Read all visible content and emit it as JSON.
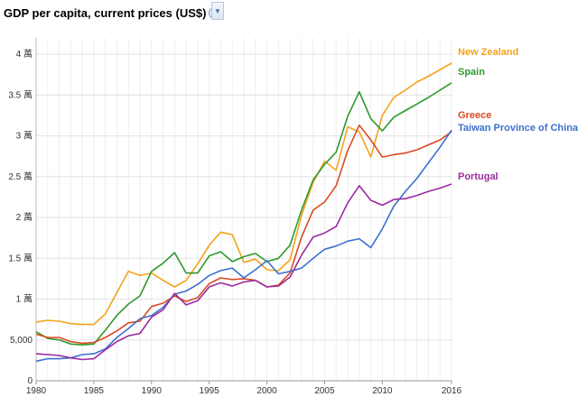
{
  "header": {
    "title": "GDP per capita, current prices (US$)",
    "help_icon": "?",
    "dropdown_icon": "▼"
  },
  "chart_data": {
    "type": "line",
    "title": "GDP per capita, current prices (US$)",
    "xlabel": "",
    "ylabel": "",
    "xlim": [
      1980,
      2016
    ],
    "ylim": [
      0,
      42000
    ],
    "grid": true,
    "legend": "right, labels at line ends",
    "x_ticks": [
      {
        "v": 1980,
        "label": "1980"
      },
      {
        "v": 1985,
        "label": "1985"
      },
      {
        "v": 1990,
        "label": "1990"
      },
      {
        "v": 1995,
        "label": "1995"
      },
      {
        "v": 2000,
        "label": "2000"
      },
      {
        "v": 2005,
        "label": "2005"
      },
      {
        "v": 2010,
        "label": "2010"
      },
      {
        "v": 2016,
        "label": "2016"
      }
    ],
    "y_ticks": [
      {
        "v": 0,
        "label": "0"
      },
      {
        "v": 5000,
        "label": "5,000"
      },
      {
        "v": 10000,
        "label": "1 萬"
      },
      {
        "v": 15000,
        "label": "1.5 萬"
      },
      {
        "v": 20000,
        "label": "2 萬"
      },
      {
        "v": 25000,
        "label": "2.5 萬"
      },
      {
        "v": 30000,
        "label": "3 萬"
      },
      {
        "v": 35000,
        "label": "3.5 萬"
      },
      {
        "v": 40000,
        "label": "4 萬"
      }
    ],
    "x": [
      1980,
      1981,
      1982,
      1983,
      1984,
      1985,
      1986,
      1987,
      1988,
      1989,
      1990,
      1991,
      1992,
      1993,
      1994,
      1995,
      1996,
      1997,
      1998,
      1999,
      2000,
      2001,
      2002,
      2003,
      2004,
      2005,
      2006,
      2007,
      2008,
      2009,
      2010,
      2011,
      2012,
      2013,
      2014,
      2015,
      2016
    ],
    "series": [
      {
        "name": "New Zealand",
        "color": "#f5a21c",
        "values": [
          7200,
          7400,
          7300,
          7000,
          6900,
          6900,
          8200,
          10800,
          13400,
          12900,
          13200,
          12300,
          11500,
          12300,
          14300,
          16600,
          18200,
          17900,
          14500,
          14900,
          13600,
          13500,
          14800,
          20300,
          24300,
          26900,
          25800,
          31100,
          30500,
          27400,
          32500,
          34700,
          35600,
          36600,
          37300,
          38100,
          38900
        ]
      },
      {
        "name": "Spain",
        "color": "#2e9a2e",
        "values": [
          6000,
          5200,
          5000,
          4500,
          4400,
          4500,
          6200,
          8000,
          9400,
          10400,
          13400,
          14400,
          15700,
          13200,
          13200,
          15300,
          15800,
          14600,
          15200,
          15600,
          14600,
          15000,
          16600,
          20900,
          24600,
          26500,
          28000,
          32400,
          35400,
          32100,
          30600,
          32300,
          33100,
          33900,
          34700,
          35600,
          36500
        ]
      },
      {
        "name": "Greece",
        "color": "#db4a22",
        "values": [
          5700,
          5300,
          5300,
          4800,
          4600,
          4700,
          5300,
          6100,
          7100,
          7300,
          9100,
          9500,
          10400,
          9700,
          10200,
          11900,
          12600,
          12400,
          12500,
          12300,
          11500,
          11700,
          13200,
          17600,
          20900,
          21900,
          23900,
          28200,
          31300,
          29500,
          27400,
          27700,
          27900,
          28300,
          28900,
          29500,
          30500
        ]
      },
      {
        "name": "Taiwan Province of China",
        "color": "#3d6fd0",
        "values": [
          2400,
          2700,
          2700,
          2800,
          3200,
          3300,
          3900,
          5300,
          6400,
          7600,
          8000,
          9000,
          10600,
          11000,
          11800,
          12900,
          13500,
          13800,
          12600,
          13600,
          14700,
          13100,
          13400,
          13800,
          15000,
          16100,
          16500,
          17100,
          17400,
          16300,
          18600,
          21400,
          23200,
          24800,
          26700,
          28600,
          30700
        ]
      },
      {
        "name": "Portugal",
        "color": "#9c2aa0",
        "values": [
          3300,
          3200,
          3100,
          2800,
          2600,
          2700,
          3800,
          4800,
          5500,
          5800,
          7800,
          8700,
          10700,
          9300,
          9800,
          11500,
          12000,
          11600,
          12100,
          12300,
          11500,
          11600,
          12700,
          15400,
          17600,
          18100,
          18900,
          21800,
          23900,
          22100,
          21500,
          22200,
          22300,
          22700,
          23200,
          23600,
          24100
        ]
      }
    ]
  }
}
